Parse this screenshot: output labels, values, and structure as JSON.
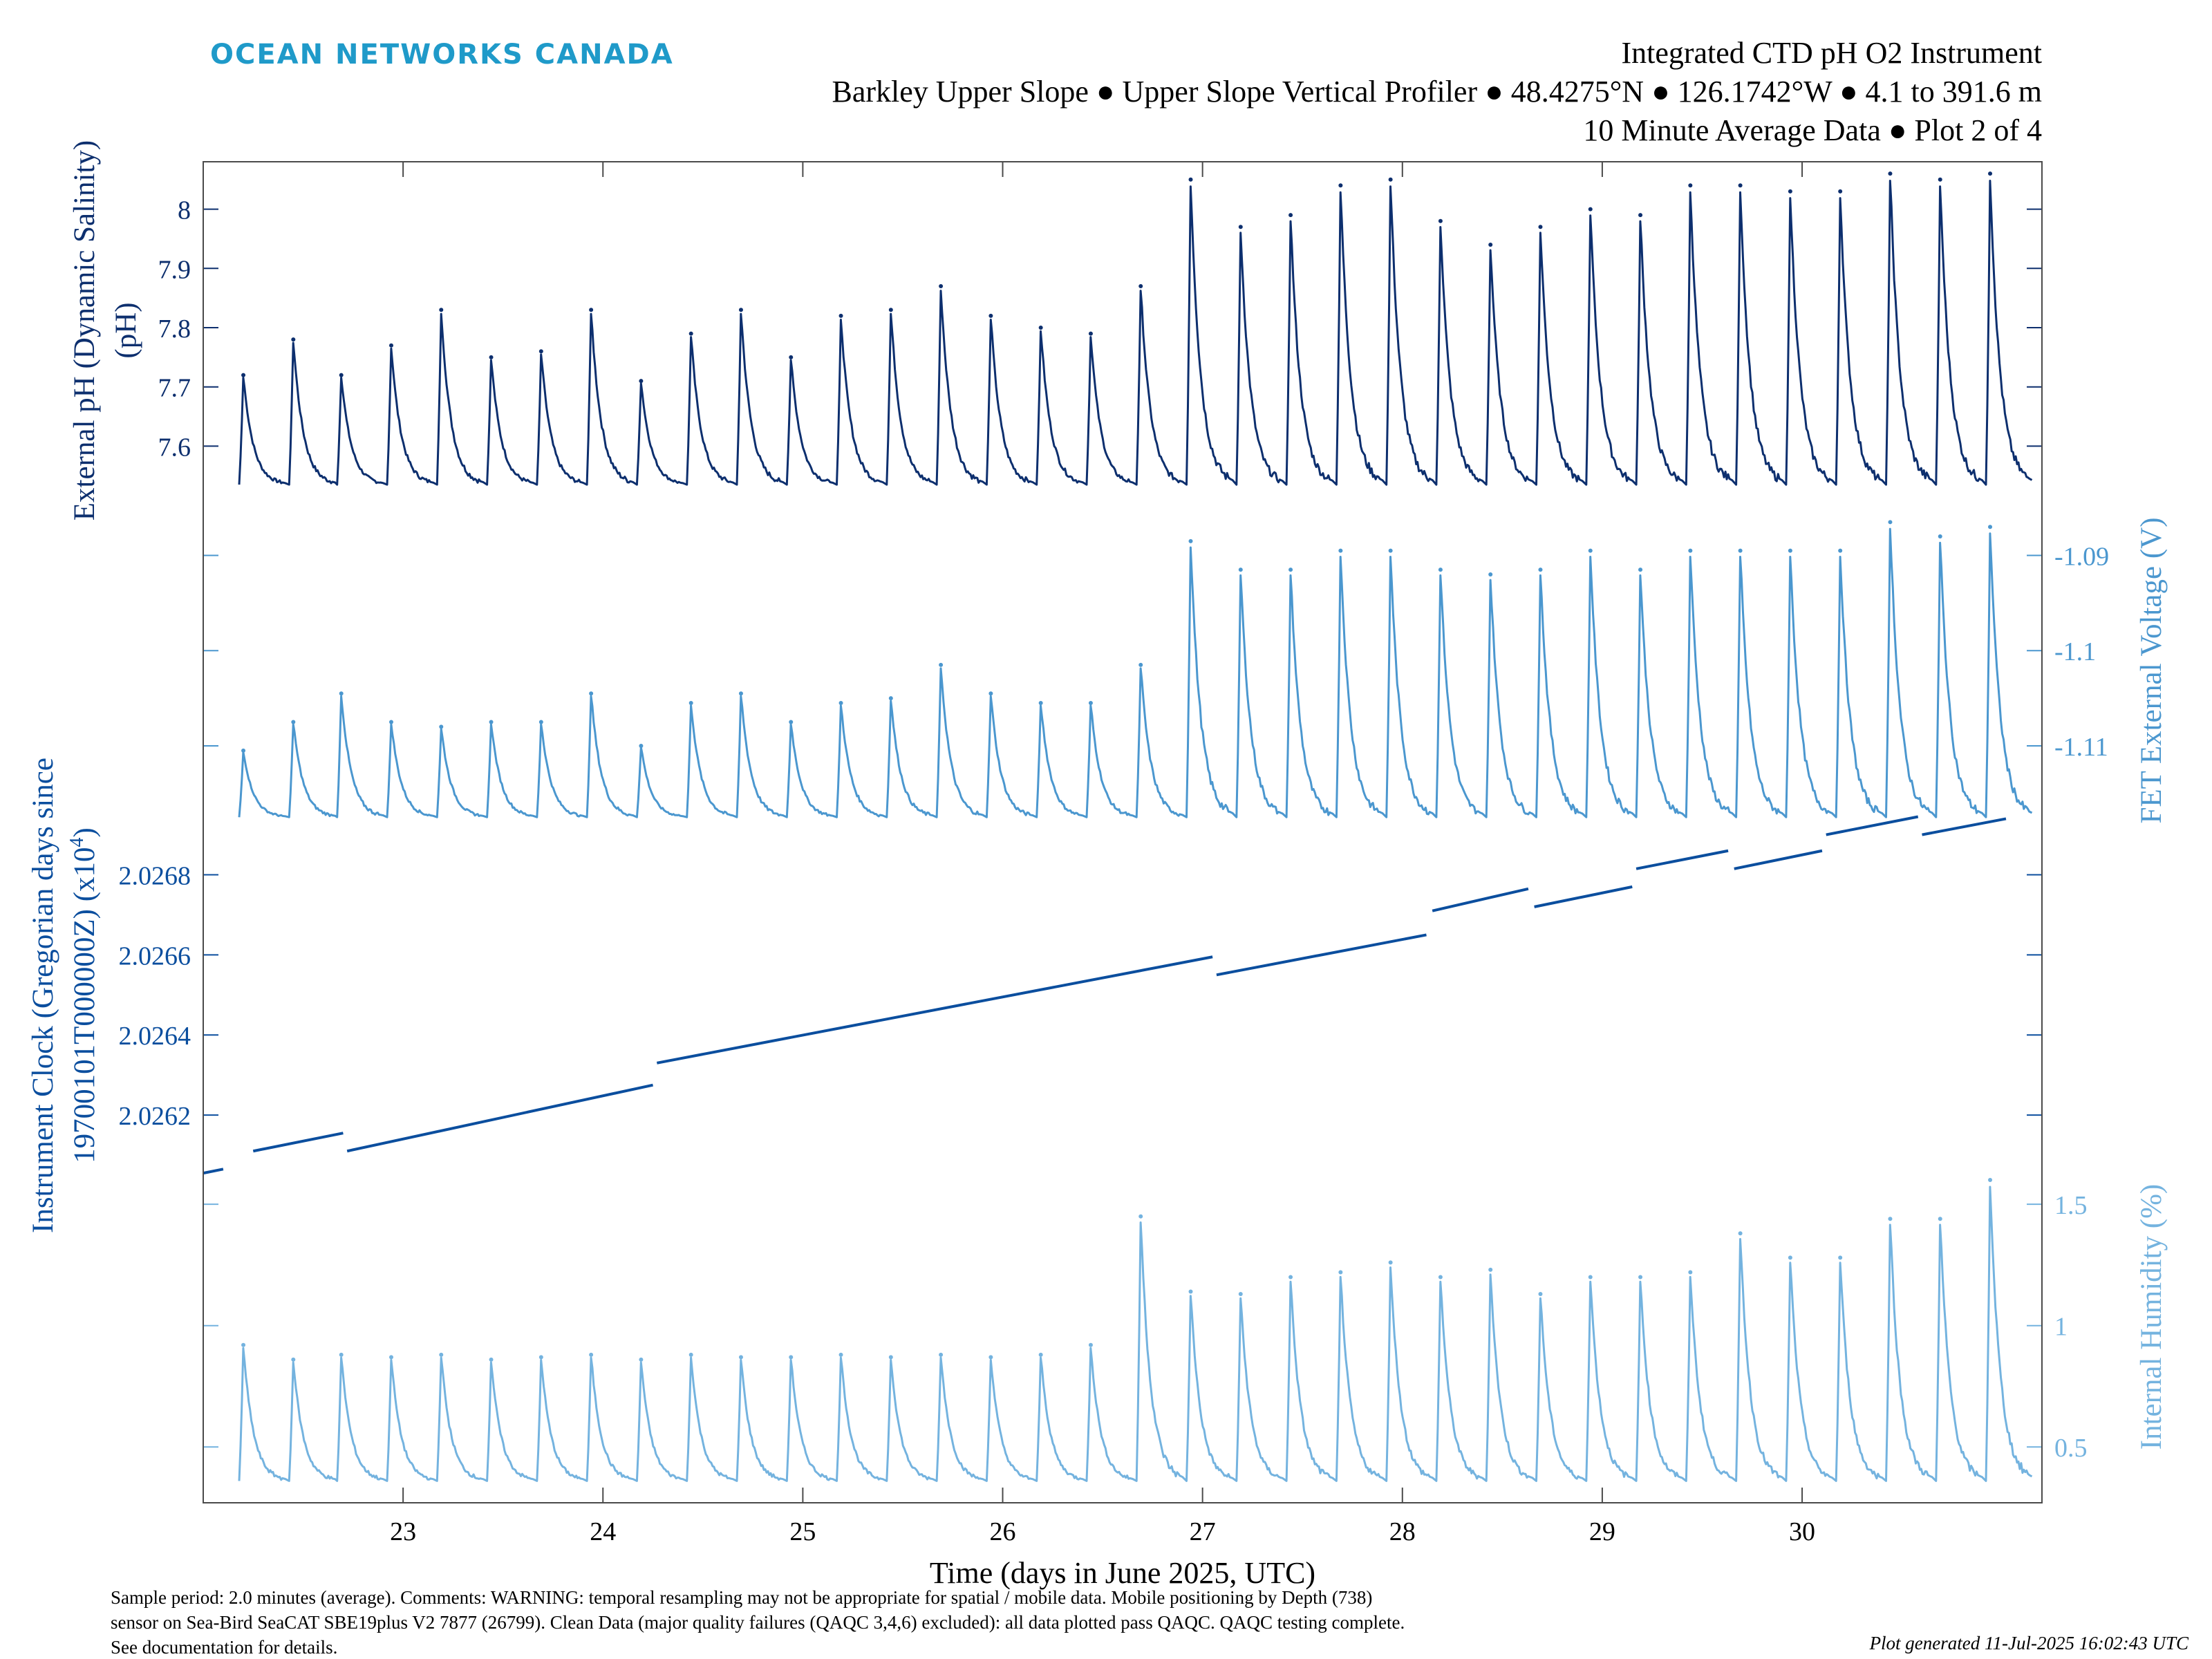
{
  "header": {
    "logo": "OCEAN NETWORKS CANADA",
    "title_lines": [
      "Integrated CTD pH O2 Instrument",
      "Barkley Upper Slope ● Upper Slope Vertical Profiler ● 48.4275°N ● 126.1742°W ● 4.1 to 391.6 m",
      "10 Minute Average Data ● Plot 2 of 4"
    ]
  },
  "footer": {
    "notes": [
      "Sample period: 2.0 minutes (average). Comments: WARNING: temporal resampling may not be appropriate for spatial / mobile data. Mobile positioning by Depth (738)",
      "sensor on Sea-Bird SeaCAT SBE19plus V2 7877 (26799). Clean Data (major quality failures (QAQC 3,4,6) excluded): all data plotted pass QAQC. QAQC testing complete.",
      "See documentation for details."
    ],
    "generated": "Plot generated 11-Jul-2025 16:02:43 UTC"
  },
  "colors": {
    "ph": "#0d2f6e",
    "fet": "#4b97cf",
    "clock": "#0b4e9e",
    "humidity": "#74b3df",
    "logo": "#1f9ac9",
    "axis_text": "#0d2f6e"
  },
  "chart_data": {
    "type": "line",
    "x_axis": {
      "label": "Time (days in June 2025, UTC)",
      "ticks": [
        23,
        24,
        25,
        26,
        27,
        28,
        29,
        30
      ],
      "tick_labels": [
        "23",
        "24",
        "25",
        "26",
        "27",
        "28",
        "29",
        "30"
      ],
      "range": [
        22.0,
        31.2
      ]
    },
    "profile_starts": [
      22.18,
      22.43,
      22.67,
      22.92,
      23.17,
      23.42,
      23.67,
      23.92,
      24.17,
      24.42,
      24.67,
      24.92,
      25.17,
      25.42,
      25.67,
      25.92,
      26.17,
      26.42,
      26.67,
      26.92,
      27.17,
      27.42,
      27.67,
      27.92,
      28.17,
      28.42,
      28.67,
      28.92,
      29.17,
      29.42,
      29.67,
      29.92,
      30.17,
      30.42,
      30.67,
      30.92
    ],
    "panels": [
      {
        "id": "ph",
        "ylabel": "External pH (Dynamic Salinity)",
        "ylabel_unit": "(pH)",
        "axis_side": "left",
        "ylim": [
          7.52,
          8.08
        ],
        "yticks": [
          7.6,
          7.7,
          7.8,
          7.9,
          8.0
        ],
        "ytick_labels": [
          "7.6",
          "7.7",
          "7.8",
          "7.9",
          "8"
        ],
        "baseline": 7.535,
        "profile_peaks": [
          7.72,
          7.78,
          7.72,
          7.77,
          7.83,
          7.75,
          7.76,
          7.83,
          7.71,
          7.79,
          7.83,
          7.75,
          7.82,
          7.83,
          7.87,
          7.82,
          7.8,
          7.79,
          7.87,
          8.05,
          7.97,
          7.99,
          8.04,
          8.05,
          7.98,
          7.94,
          7.97,
          8.0,
          7.99,
          8.04,
          8.04,
          8.03,
          8.03,
          8.06,
          8.05,
          8.06
        ]
      },
      {
        "id": "fet",
        "ylabel": "FET External Voltage (V)",
        "axis_side": "right",
        "ylim": [
          -1.1185,
          -1.0835
        ],
        "yticks": [
          -1.11,
          -1.1,
          -1.09
        ],
        "ytick_labels": [
          "-1.11",
          "-1.1",
          "-1.09"
        ],
        "baseline": -1.1175,
        "profile_peaks": [
          -1.1105,
          -1.1075,
          -1.1045,
          -1.1075,
          -1.108,
          -1.1075,
          -1.1075,
          -1.1045,
          -1.11,
          -1.1055,
          -1.1045,
          -1.1075,
          -1.1055,
          -1.105,
          -1.1015,
          -1.1045,
          -1.1055,
          -1.1055,
          -1.1015,
          -1.0885,
          -1.0915,
          -1.0915,
          -1.0895,
          -1.0895,
          -1.0915,
          -1.092,
          -1.0915,
          -1.0895,
          -1.0915,
          -1.0895,
          -1.0895,
          -1.0895,
          -1.0895,
          -1.0865,
          -1.088,
          -1.087
        ]
      },
      {
        "id": "clock",
        "ylabel": "Instrument Clock (Gregorian days since",
        "ylabel_line2": "19700101T000000Z) (x10",
        "ylabel_exp": "4",
        "ylabel_tail": ")",
        "axis_side": "left",
        "ylim": [
          2.02605,
          2.02692
        ],
        "yticks": [
          2.0262,
          2.0264,
          2.0266,
          2.0268
        ],
        "ytick_labels": [
          "2.0262",
          "2.0264",
          "2.0266",
          "2.0268"
        ],
        "segments": [
          [
            [
              22.0,
              2.026055
            ],
            [
              22.1,
              2.026065
            ]
          ],
          [
            [
              22.25,
              2.02611
            ],
            [
              22.7,
              2.026155
            ]
          ],
          [
            [
              22.72,
              2.02611
            ],
            [
              24.25,
              2.026275
            ]
          ],
          [
            [
              24.27,
              2.02633
            ],
            [
              27.05,
              2.026595
            ]
          ],
          [
            [
              27.07,
              2.02655
            ],
            [
              28.12,
              2.02665
            ]
          ],
          [
            [
              28.15,
              2.02671
            ],
            [
              28.63,
              2.026765
            ]
          ],
          [
            [
              28.66,
              2.02672
            ],
            [
              29.15,
              2.02677
            ]
          ],
          [
            [
              29.17,
              2.026815
            ],
            [
              29.63,
              2.02686
            ]
          ],
          [
            [
              29.66,
              2.026815
            ],
            [
              30.1,
              2.02686
            ]
          ],
          [
            [
              30.12,
              2.0269
            ],
            [
              30.58,
              2.026945
            ]
          ],
          [
            [
              30.6,
              2.0269
            ],
            [
              31.02,
              2.02694
            ]
          ]
        ]
      },
      {
        "id": "humidity",
        "ylabel": "Internal Humidity (%)",
        "axis_side": "right",
        "ylim": [
          0.27,
          1.62
        ],
        "yticks": [
          0.5,
          1.0,
          1.5
        ],
        "ytick_labels": [
          "0.5",
          "1",
          "1.5"
        ],
        "baseline": 0.36,
        "profile_peaks": [
          0.92,
          0.86,
          0.88,
          0.87,
          0.88,
          0.86,
          0.87,
          0.88,
          0.86,
          0.88,
          0.87,
          0.87,
          0.88,
          0.87,
          0.88,
          0.87,
          0.88,
          0.92,
          1.45,
          1.14,
          1.13,
          1.2,
          1.22,
          1.26,
          1.2,
          1.23,
          1.13,
          1.2,
          1.2,
          1.22,
          1.38,
          1.28,
          1.28,
          1.44,
          1.44,
          1.6
        ]
      }
    ]
  }
}
